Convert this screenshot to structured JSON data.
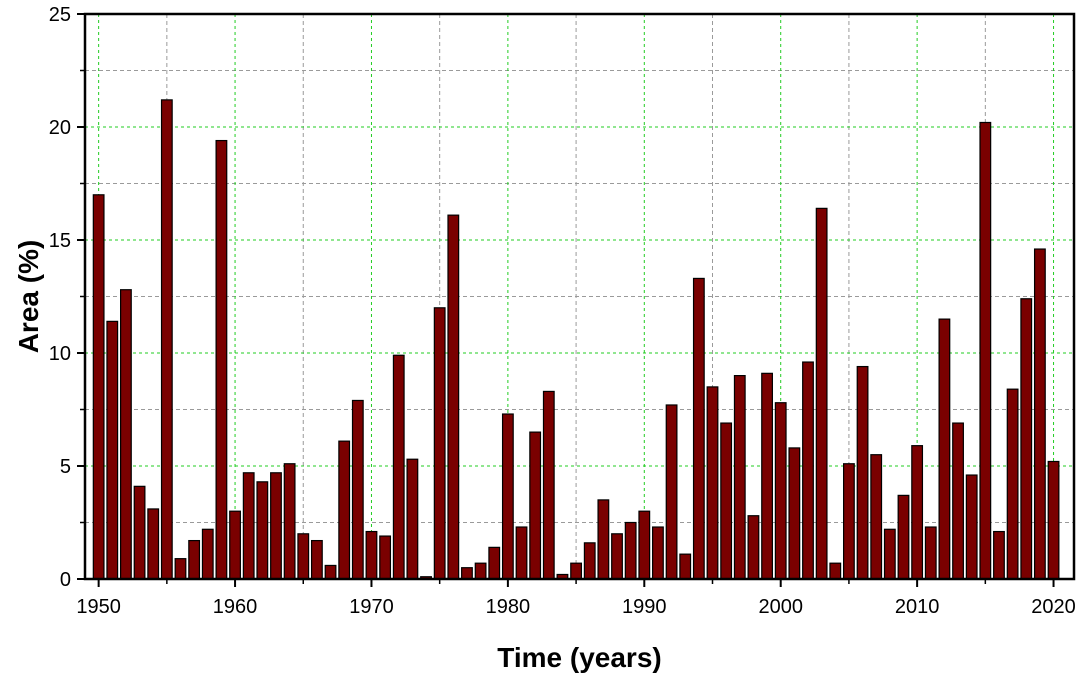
{
  "chart_data": {
    "type": "bar",
    "title": "",
    "xlabel": "Time (years)",
    "ylabel": "Area (%)",
    "xlim": [
      1949,
      2021.5
    ],
    "ylim": [
      0,
      25
    ],
    "x_ticks": [
      1950,
      1960,
      1970,
      1980,
      1990,
      2000,
      2010,
      2020
    ],
    "y_ticks": [
      0,
      5,
      10,
      15,
      20,
      25
    ],
    "grid": true,
    "legend": "none",
    "bar_color": "#7a0000",
    "bar_edge_color": "#000000",
    "grid_color_major": "#22cc22",
    "grid_color_minor": "#9a9a9a",
    "x": [
      1950,
      1951,
      1952,
      1953,
      1954,
      1955,
      1956,
      1957,
      1958,
      1959,
      1960,
      1961,
      1962,
      1963,
      1964,
      1965,
      1966,
      1967,
      1968,
      1969,
      1970,
      1971,
      1972,
      1973,
      1974,
      1975,
      1976,
      1977,
      1978,
      1979,
      1980,
      1981,
      1982,
      1983,
      1984,
      1985,
      1986,
      1987,
      1988,
      1989,
      1990,
      1991,
      1992,
      1993,
      1994,
      1995,
      1996,
      1997,
      1998,
      1999,
      2000,
      2001,
      2002,
      2003,
      2004,
      2005,
      2006,
      2007,
      2008,
      2009,
      2010,
      2011,
      2012,
      2013,
      2014,
      2015,
      2016,
      2017,
      2018,
      2019,
      2020
    ],
    "values": [
      17.0,
      11.4,
      12.8,
      4.1,
      3.1,
      21.2,
      0.9,
      1.7,
      2.2,
      19.4,
      3.0,
      4.7,
      4.3,
      4.7,
      5.1,
      2.0,
      1.7,
      0.6,
      6.1,
      7.9,
      2.1,
      1.9,
      9.9,
      5.3,
      0.1,
      12.0,
      16.1,
      0.5,
      0.7,
      1.4,
      7.3,
      2.3,
      6.5,
      8.3,
      0.2,
      0.7,
      1.6,
      3.5,
      2.0,
      2.5,
      3.0,
      2.3,
      7.7,
      1.1,
      13.3,
      8.5,
      6.9,
      9.0,
      2.8,
      9.1,
      7.8,
      5.8,
      9.6,
      16.4,
      0.7,
      5.1,
      9.4,
      5.5,
      2.2,
      3.7,
      5.9,
      2.3,
      11.5,
      6.9,
      4.6,
      20.2,
      2.1,
      8.4,
      12.4,
      14.6,
      5.2
    ]
  }
}
